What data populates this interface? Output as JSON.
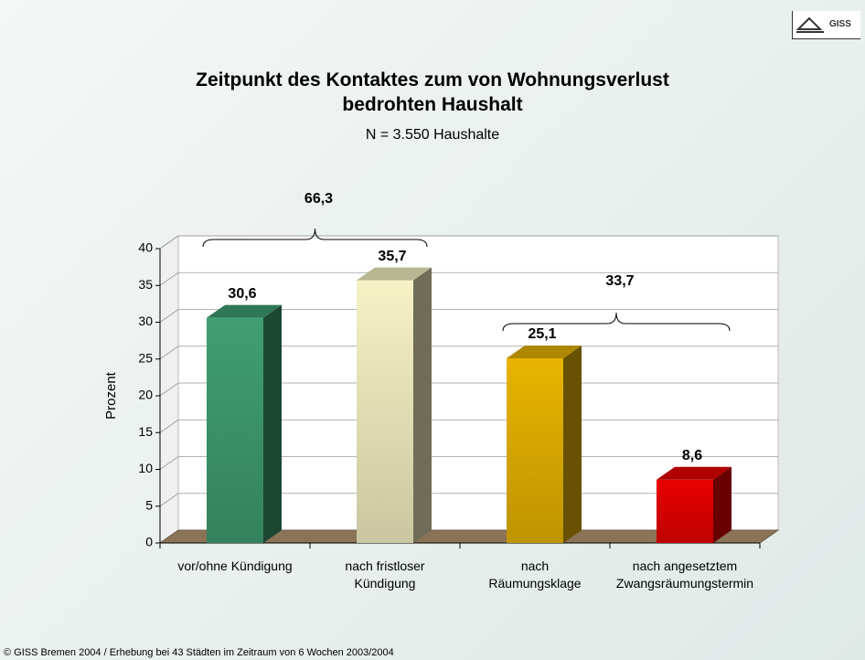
{
  "chart_data": {
    "type": "bar3d",
    "title": "Zeitpunkt des Kontaktes zum von Wohnungsverlust\nbedrohten Haushalt",
    "subtitle": "N = 3.550 Haushalte",
    "ylabel": "Prozent",
    "categories": [
      "vor/ohne Kündigung",
      "nach fristloser\nKündigung",
      "nach\nRäumungsklage",
      "nach angesetztem\nZwangsräumungstermin"
    ],
    "values": [
      30.6,
      35.7,
      25.1,
      8.6
    ],
    "value_labels": [
      "30,6",
      "35,7",
      "25,1",
      "8,6"
    ],
    "colors": [
      "#3f9e72",
      "#f6f2c4",
      "#e8b400",
      "#e80000"
    ],
    "annotations": [
      "66,3",
      "33,7"
    ],
    "ylim": [
      0,
      40
    ],
    "yticks": [
      0,
      5,
      10,
      15,
      20,
      25,
      30,
      35,
      40
    ],
    "grid": true,
    "footer": "© GISS Bremen 2004 / Erhebung bei 43 Städten im Zeitraum von 6 Wochen 2003/2004",
    "logo": "GISS"
  }
}
